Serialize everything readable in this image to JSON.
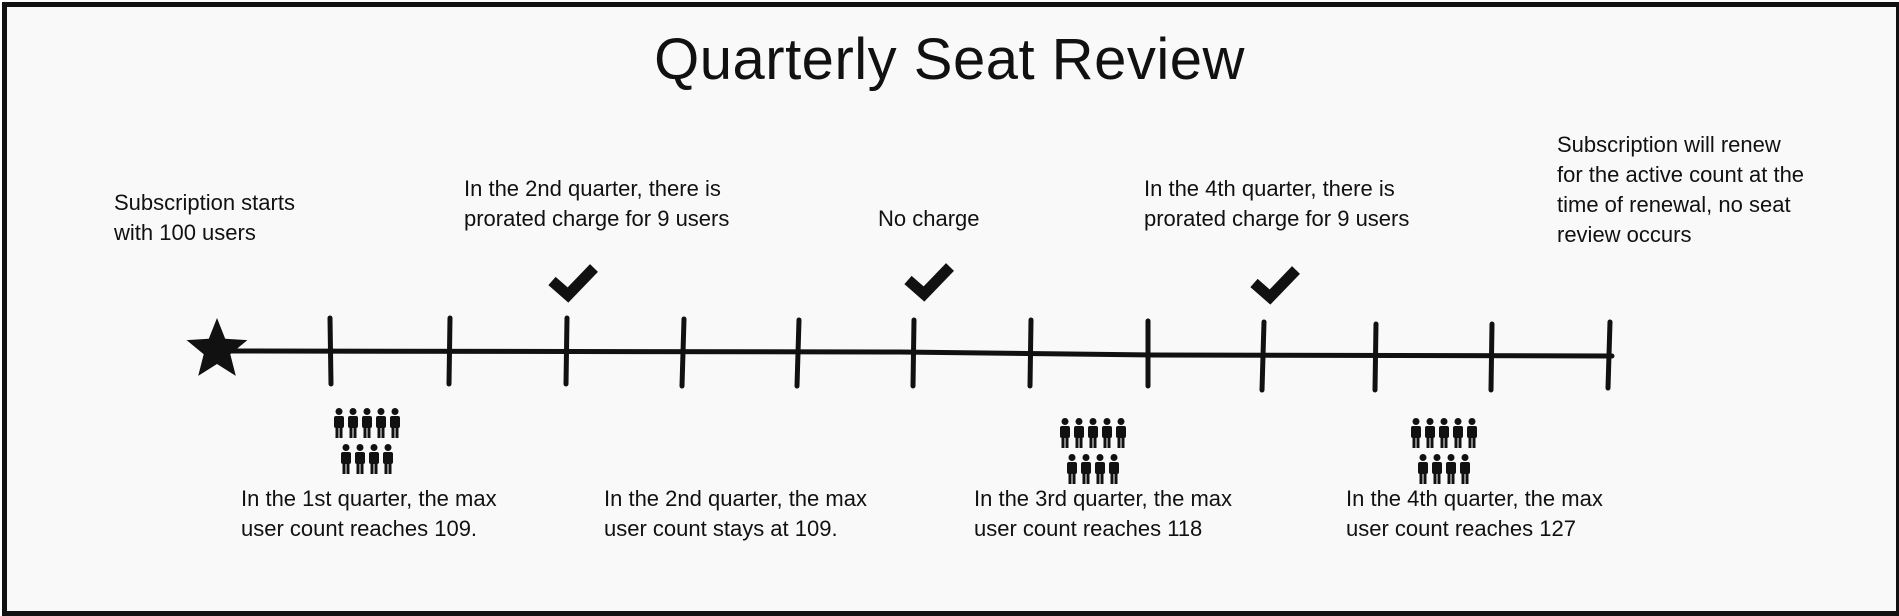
{
  "title": "Quarterly Seat Review",
  "top_notes": {
    "start": "Subscription starts\nwith 100 users",
    "q2_charge": "In the 2nd quarter, there is\nprorated charge for 9 users",
    "q3_charge": "No charge",
    "q4_charge": "In the 4th quarter, there is\nprorated charge for 9 users",
    "renewal": "Subscription will renew\nfor the active count at the\ntime of renewal, no seat\nreview occurs"
  },
  "bottom_notes": {
    "q1": "In the 1st quarter, the max\nuser count reaches 109.",
    "q2": "In the 2nd quarter, the max\nuser count stays at 109.",
    "q3": "In the 3rd quarter, the max\nuser count reaches 118",
    "q4": "In the 4th quarter, the max\nuser count reaches 127"
  },
  "icons": {
    "start": "star-icon",
    "check": "checkmark-icon",
    "users": "user-group-icon"
  },
  "colors": {
    "ink": "#111111",
    "background": "#f9f9f9"
  }
}
